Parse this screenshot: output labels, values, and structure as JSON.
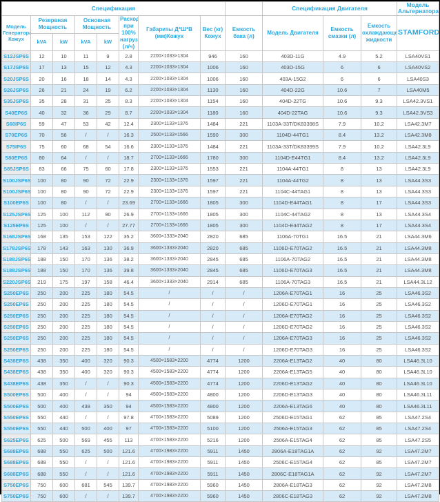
{
  "header": {
    "group_spec": "Спецификация",
    "group_engine": "Спецификация Двигателя",
    "group_alternator": "Модель Альтернатора",
    "col_model": "Модель Генератора Кожух",
    "col_standby": "Резервная Мощность",
    "col_prime": "Основная Мощность",
    "unit_kva": "kVA",
    "unit_kw": "kW",
    "col_fuel": "Расход при 100% нагрузке (л/ч)",
    "col_dims": "Габариты Д*Ш*В (мм)Кожух",
    "col_weight": "Вес (кг) Кожух",
    "col_tank": "Емкость бака (л)",
    "col_engine": "Модель Двигателя",
    "col_oil": "Емкость смазки (л)",
    "col_coolant": "Емкость охлаждающе жидкости",
    "col_alternator": "STAMFORD"
  },
  "row_keys": [
    "model",
    "standby-kva",
    "standby-kw",
    "prime-kva",
    "prime-kw",
    "fuel",
    "dims",
    "weight",
    "tank",
    "engine",
    "oil",
    "coolant",
    "alternator"
  ],
  "rows": [
    [
      "S12JSP6S",
      "12",
      "10",
      "11",
      "9",
      "2.8",
      "2200×1033×1304",
      "946",
      "160",
      "403D-11G",
      "4.9",
      "5.2",
      "LSA40VS1"
    ],
    [
      "S17JSP6S",
      "17",
      "13",
      "15",
      "12",
      "4.3",
      "2200×1033×1304",
      "1006",
      "160",
      "403D-15G",
      "6",
      "6",
      "LSA40VS2"
    ],
    [
      "S20JSP6S",
      "20",
      "16",
      "18",
      "14",
      "4.3",
      "2200×1033×1304",
      "1006",
      "160",
      "403A-15G2",
      "6",
      "6",
      "LSA40S3"
    ],
    [
      "S26JSP6S",
      "26",
      "21",
      "24",
      "19",
      "6.2",
      "2200×1033×1304",
      "1130",
      "160",
      "404D-22G",
      "10.6",
      "7",
      "LSA40M5"
    ],
    [
      "S35JSP6S",
      "35",
      "28",
      "31",
      "25",
      "8.3",
      "2200×1033×1304",
      "1154",
      "160",
      "404D-22TG",
      "10.6",
      "9.3",
      "LSA42.3VS1"
    ],
    [
      "S40EP6S",
      "40",
      "32",
      "36",
      "29",
      "8.7",
      "2200×1033×1304",
      "1180",
      "160",
      "404D-22TAG",
      "10.6",
      "9.3",
      "LSA42.3VS3"
    ],
    [
      "S60IP6S",
      "59",
      "47",
      "53",
      "42",
      "12.4",
      "2300×1133×1376",
      "1484",
      "221",
      "1103A-33T/DK83398S",
      "7.9",
      "10.2",
      "LSA42.3M7"
    ],
    [
      "S70EP6S",
      "70",
      "56",
      "/",
      "/",
      "16.3",
      "2500×1133×1566",
      "1590",
      "300",
      "1104D-44TG1",
      "8.4",
      "13.2",
      "LSA42.3M8"
    ],
    [
      "S75IP6S",
      "75",
      "60",
      "68",
      "54",
      "16.6",
      "2300×1133×1376",
      "1484",
      "221",
      "1103A-33T/DK83399S",
      "7.9",
      "10.2",
      "LSA42.3L9"
    ],
    [
      "S80EP6S",
      "80",
      "64",
      "/",
      "/",
      "18.7",
      "2700×1133×1666",
      "1780",
      "300",
      "1104D-E44TG1",
      "8.4",
      "13.2",
      "LSA42.3L9"
    ],
    [
      "S85JSP6S",
      "83",
      "66",
      "75",
      "60",
      "17.8",
      "2300×1133×1376",
      "1553",
      "221",
      "1104A-44TG1",
      "8",
      "13",
      "LSA42.3L9"
    ],
    [
      "S100JSP6S",
      "100",
      "80",
      "90",
      "72",
      "22.9",
      "2300×1133×1376",
      "1597",
      "221",
      "1104A-44TG2",
      "8",
      "13",
      "LSA44.3S3"
    ],
    [
      "S100JSP6S",
      "100",
      "80",
      "90",
      "72",
      "22.9",
      "2300×1133×1376",
      "1597",
      "221",
      "1104C-44TAG1",
      "8",
      "13",
      "LSA44.3S3"
    ],
    [
      "S100EP6S",
      "100",
      "80",
      "/",
      "/",
      "23.69",
      "2700×1133×1666",
      "1805",
      "300",
      "1104D-E44TAG1",
      "8",
      "17",
      "LSA44.3S3"
    ],
    [
      "S125JSP6S",
      "125",
      "100",
      "112",
      "90",
      "26.9",
      "2700×1133×1666",
      "1805",
      "300",
      "1104C-44TAG2",
      "8",
      "13",
      "LSA44.3S4"
    ],
    [
      "S125EP6S",
      "125",
      "100",
      "/",
      "/",
      "27.77",
      "2700×1133×1666",
      "1805",
      "300",
      "1104D-E44TAG2",
      "8",
      "17",
      "LSA44.3S4"
    ],
    [
      "S168JSP6S",
      "168",
      "135",
      "153",
      "122",
      "35.2",
      "3600×1333×2040",
      "2820",
      "685",
      "1106A-70TG1",
      "16.5",
      "21",
      "LSA44.3M6"
    ],
    [
      "S178JSP6S",
      "178",
      "143",
      "163",
      "130",
      "36.9",
      "3600×1333×2040",
      "2820",
      "685",
      "1106D-E70TAG2",
      "16.5",
      "21",
      "LSA44.3M8"
    ],
    [
      "S188JSP6S",
      "188",
      "150",
      "170",
      "136",
      "38.2",
      "3600×1333×2040",
      "2845",
      "685",
      "1106A-70TAG2",
      "16.5",
      "21",
      "LSA44.3M8"
    ],
    [
      "S188JSP6S",
      "188",
      "150",
      "170",
      "136",
      "39.8",
      "3600×1333×2040",
      "2845",
      "685",
      "1106D-E70TAG3",
      "16.5",
      "21",
      "LSA44.3M8"
    ],
    [
      "S220JSP6S",
      "219",
      "175",
      "197",
      "158",
      "46.4",
      "3600×1333×2040",
      "2914",
      "685",
      "1106A-70TAG3",
      "16.5",
      "21",
      "LSA44.3L12"
    ],
    [
      "S250EP6S",
      "250",
      "200",
      "225",
      "180",
      "54.5",
      "/",
      "/",
      "/",
      "1206A-E70TAG1",
      "16",
      "25",
      "LSA46.3S2"
    ],
    [
      "S250EP6S",
      "250",
      "200",
      "225",
      "180",
      "54.5",
      "/",
      "/",
      "/",
      "1206D-E70TAG1",
      "16",
      "25",
      "LSA46.3S2"
    ],
    [
      "S250EP6S",
      "250",
      "200",
      "225",
      "180",
      "54.5",
      "/",
      "/",
      "/",
      "1206A-E70TAG2",
      "16",
      "25",
      "LSA46.3S2"
    ],
    [
      "S250EP6S",
      "250",
      "200",
      "225",
      "180",
      "54.5",
      "/",
      "/",
      "/",
      "1206D-E70TAG2",
      "16",
      "25",
      "LSA46.3S2"
    ],
    [
      "S250EP6S",
      "250",
      "200",
      "225",
      "180",
      "54.5",
      "/",
      "/",
      "/",
      "1206A-E70TAG3",
      "16",
      "25",
      "LSA46.3S2"
    ],
    [
      "S250EP6S",
      "250",
      "200",
      "225",
      "180",
      "54.5",
      "/",
      "/",
      "/",
      "1206D-E70TAG3",
      "16",
      "25",
      "LSA46.3S2"
    ],
    [
      "S438EP6S",
      "438",
      "350",
      "400",
      "320",
      "90.3",
      "4500×1583×2200",
      "4774",
      "1200",
      "2206A-E13TAG2",
      "40",
      "80",
      "LSA46.3L10"
    ],
    [
      "S438EP6S",
      "438",
      "350",
      "400",
      "320",
      "90.3",
      "4500×1583×2200",
      "4774",
      "1200",
      "2206A-E13TAG5",
      "40",
      "80",
      "LSA46.3L10"
    ],
    [
      "S438EP6S",
      "438",
      "350",
      "/",
      "/",
      "90.3",
      "4500×1583×2200",
      "4774",
      "1200",
      "2206D-E13TAG2",
      "40",
      "80",
      "LSA46.3L10"
    ],
    [
      "S500EP6S",
      "500",
      "400",
      "/",
      "/",
      "94",
      "4500×1583×2200",
      "4800",
      "1200",
      "2206D-E13TAG3",
      "40",
      "80",
      "LSA46.3L11"
    ],
    [
      "S500EP6S",
      "500",
      "400",
      "438",
      "350",
      "94",
      "4500×1583×2200",
      "4800",
      "1200",
      "2206A-E13TAG6",
      "40",
      "80",
      "LSA46.3L11"
    ],
    [
      "S550EP6S",
      "550",
      "440",
      "/",
      "/",
      "97.8",
      "4700×1583×2200",
      "5089",
      "1200",
      "2506D-E15TAG1",
      "62",
      "85",
      "LSA47.2S4"
    ],
    [
      "S550EP6S",
      "550",
      "440",
      "500",
      "400",
      "97",
      "4700×1583×2200",
      "5100",
      "1200",
      "2506A-E15TAG3",
      "62",
      "85",
      "LSA47.2S4"
    ],
    [
      "S625EP6S",
      "625",
      "500",
      "569",
      "455",
      "113",
      "4700×1583×2200",
      "5216",
      "1200",
      "2506A-E15TAG4",
      "62",
      "85",
      "LSA47.2S5"
    ],
    [
      "S688EP6S",
      "688",
      "550",
      "625",
      "500",
      "121.6",
      "4700×1983×2200",
      "5911",
      "1450",
      "2806A-E18TAG1A",
      "62",
      "92",
      "LSA47.2M7"
    ],
    [
      "S688EP6S",
      "688",
      "550",
      "/",
      "/",
      "121.6",
      "4700×1983×2200",
      "5911",
      "1450",
      "2506C-E15TAG4",
      "62",
      "85",
      "LSA47.2M7"
    ],
    [
      "S688EP6S",
      "688",
      "550",
      "/",
      "/",
      "121.6",
      "4700×1983×2200",
      "5911",
      "1450",
      "2806C-E18TAG1A",
      "62",
      "92",
      "LSA47.2M7"
    ],
    [
      "S750EP6S",
      "750",
      "600",
      "681",
      "545",
      "139.7",
      "4700×1983×2200",
      "5960",
      "1450",
      "2806A-E18TAG3",
      "62",
      "92",
      "LSA47.2M8"
    ],
    [
      "S750EP6S",
      "750",
      "600",
      "/",
      "/",
      "139.7",
      "4700×1983×2200",
      "5960",
      "1450",
      "2806C-E18TAG3",
      "62",
      "92",
      "LSA47.2M8"
    ]
  ],
  "colors": {
    "accent_blue": "#2aa8e0",
    "row_stripe": "#d6eaf8",
    "model_cell_gray": "#ececec",
    "data_text": "#4f4f4f",
    "border": "#c6c6c6",
    "outer_border": "#000000"
  }
}
